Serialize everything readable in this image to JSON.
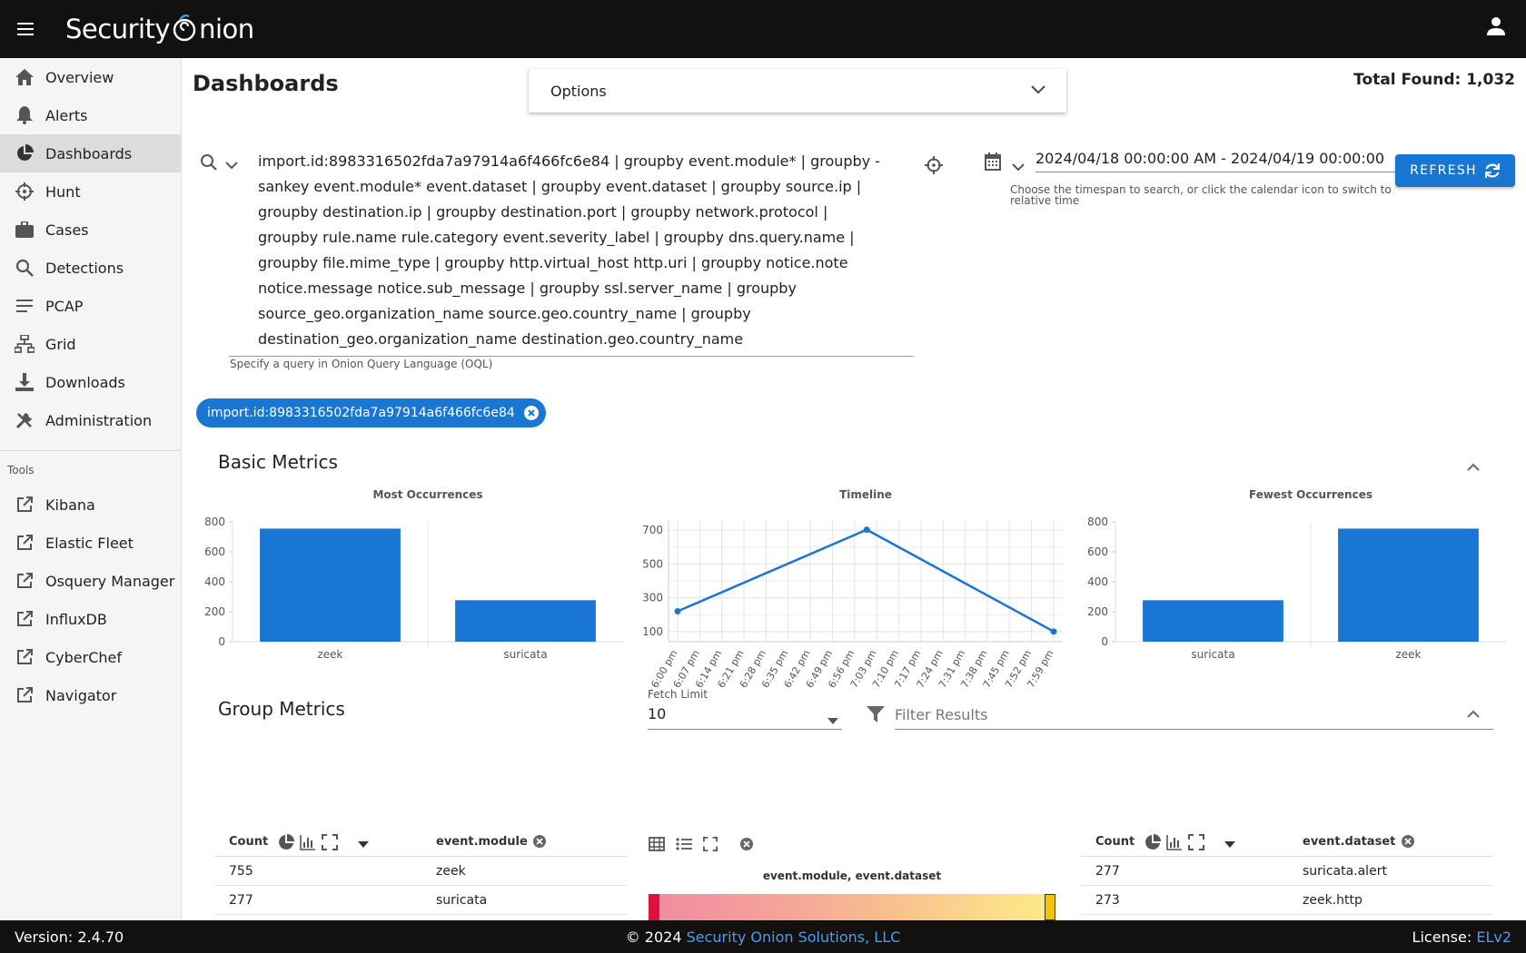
{
  "app": {
    "brand_left": "Security",
    "brand_right": "nion"
  },
  "sidebar": {
    "items": [
      {
        "label": "Overview",
        "icon": "home-icon"
      },
      {
        "label": "Alerts",
        "icon": "bell-icon"
      },
      {
        "label": "Dashboards",
        "icon": "pie-chart-icon",
        "active": true
      },
      {
        "label": "Hunt",
        "icon": "crosshairs-icon"
      },
      {
        "label": "Cases",
        "icon": "briefcase-icon"
      },
      {
        "label": "Detections",
        "icon": "search-icon"
      },
      {
        "label": "PCAP",
        "icon": "list-icon"
      },
      {
        "label": "Grid",
        "icon": "grid-network-icon"
      },
      {
        "label": "Downloads",
        "icon": "download-icon"
      },
      {
        "label": "Administration",
        "icon": "tools-icon"
      }
    ],
    "tools_label": "Tools",
    "tools": [
      {
        "label": "Kibana"
      },
      {
        "label": "Elastic Fleet"
      },
      {
        "label": "Osquery Manager"
      },
      {
        "label": "InfluxDB"
      },
      {
        "label": "CyberChef"
      },
      {
        "label": "Navigator"
      }
    ]
  },
  "page": {
    "title": "Dashboards",
    "options_label": "Options",
    "total_found": "Total Found: 1,032"
  },
  "query": {
    "lines": [
      "import.id:8983316502fda7a97914a6f466fc6e84 | groupby event.module* | groupby -",
      "sankey event.module* event.dataset | groupby event.dataset | groupby source.ip |",
      "groupby destination.ip | groupby destination.port | groupby network.protocol |",
      "groupby rule.name rule.category event.severity_label | groupby dns.query.name |",
      "groupby file.mime_type | groupby http.virtual_host http.uri | groupby notice.note",
      "notice.message notice.sub_message | groupby ssl.server_name | groupby",
      "source_geo.organization_name source.geo.country_name | groupby",
      "destination_geo.organization_name destination.geo.country_name"
    ],
    "hint": "Specify a query in Onion Query Language (OQL)"
  },
  "daterange": {
    "value": "2024/04/18 00:00:00 AM - 2024/04/19 00:00:00",
    "hint": "Choose the timespan to search, or click the calendar icon to switch to relative time"
  },
  "refresh_label": "REFRESH",
  "filter_chip": "import.id:8983316502fda7a97914a6f466fc6e84",
  "sections": {
    "basic": "Basic Metrics",
    "group": "Group Metrics"
  },
  "chart_data": [
    {
      "type": "bar",
      "title": "Most Occurrences",
      "categories": [
        "zeek",
        "suricata"
      ],
      "values": [
        755,
        277
      ],
      "ylim": [
        0,
        800
      ],
      "yticks": [
        0,
        200,
        400,
        600,
        800
      ],
      "color": "#1976d2"
    },
    {
      "type": "line",
      "title": "Timeline",
      "x": [
        "6:00 pm",
        "6:07 pm",
        "6:14 pm",
        "6:21 pm",
        "6:28 pm",
        "6:35 pm",
        "6:42 pm",
        "6:49 pm",
        "6:56 pm",
        "7:03 pm",
        "7:10 pm",
        "7:17 pm",
        "7:24 pm",
        "7:31 pm",
        "7:38 pm",
        "7:45 pm",
        "7:52 pm",
        "7:59 pm"
      ],
      "points": [
        {
          "x": 0,
          "y": 220
        },
        {
          "x": 8.55,
          "y": 703
        },
        {
          "x": 17,
          "y": 100
        }
      ],
      "ylim": [
        40,
        760
      ],
      "yticks": [
        100,
        300,
        500,
        700
      ],
      "color": "#1976d2"
    },
    {
      "type": "bar",
      "title": "Fewest Occurrences",
      "categories": [
        "suricata",
        "zeek"
      ],
      "values": [
        277,
        755
      ],
      "ylim": [
        0,
        800
      ],
      "yticks": [
        0,
        200,
        400,
        600,
        800
      ],
      "color": "#1976d2"
    }
  ],
  "group_metrics": {
    "fetch_limit_label": "Fetch Limit",
    "fetch_limit_value": "10",
    "filter_placeholder": "Filter Results",
    "table1": {
      "count_header": "Count",
      "field_header": "event.module",
      "rows": [
        {
          "count": "755",
          "value": "zeek"
        },
        {
          "count": "277",
          "value": "suricata"
        }
      ]
    },
    "sankey_title": "event.module, event.dataset",
    "table2": {
      "count_header": "Count",
      "field_header": "event.dataset",
      "rows": [
        {
          "count": "277",
          "value": "suricata.alert"
        },
        {
          "count": "273",
          "value": "zeek.http"
        }
      ]
    }
  },
  "footer": {
    "version": "Version: 2.4.70",
    "copyright_prefix": "© 2024 ",
    "company": "Security Onion Solutions, LLC",
    "license_prefix": "License: ",
    "license": "ELv2"
  }
}
